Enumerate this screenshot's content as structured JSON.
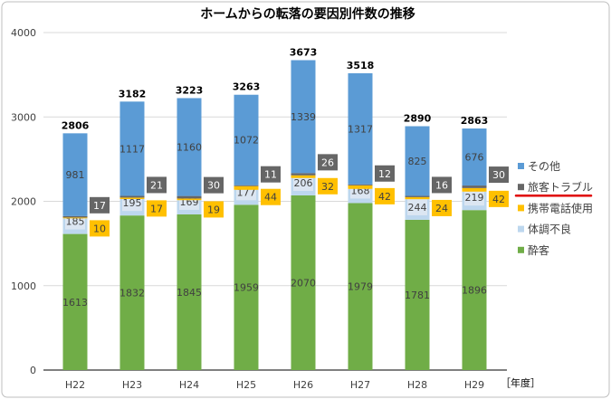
{
  "chart_data": {
    "type": "bar",
    "stacked": true,
    "title": "ホームからの転落の要因別件数の推移",
    "xlabel": "［年度］",
    "ylabel": "",
    "ylim": [
      0,
      4000
    ],
    "yticks": [
      0,
      1000,
      2000,
      3000,
      4000
    ],
    "grid": true,
    "legend_position": "right",
    "categories": [
      "H22",
      "H23",
      "H24",
      "H25",
      "H26",
      "H27",
      "H28",
      "H29"
    ],
    "series": [
      {
        "name": "酔客",
        "color": "#70ad47",
        "values": [
          1613,
          1832,
          1845,
          1959,
          2070,
          1979,
          1781,
          1896
        ]
      },
      {
        "name": "体調不良",
        "color": "#bdd7ee",
        "values": [
          185,
          195,
          169,
          177,
          206,
          168,
          244,
          219
        ]
      },
      {
        "name": "携帯電話使用",
        "color": "#ffc000",
        "values": [
          10,
          17,
          19,
          44,
          32,
          42,
          24,
          42
        ]
      },
      {
        "name": "旅客トラブル",
        "color": "#666666",
        "values": [
          17,
          21,
          30,
          11,
          26,
          12,
          16,
          30
        ]
      },
      {
        "name": "その他",
        "color": "#5b9bd5",
        "values": [
          981,
          1117,
          1160,
          1072,
          1339,
          1317,
          825,
          676
        ]
      }
    ],
    "totals": [
      2806,
      3182,
      3223,
      3263,
      3673,
      3518,
      2890,
      2863
    ],
    "legend_order": [
      "その他",
      "旅客トラブル",
      "携帯電話使用",
      "体調不良",
      "酔客"
    ],
    "highlighted_legend": "旅客トラブル",
    "highlight_color": "#e00000"
  }
}
